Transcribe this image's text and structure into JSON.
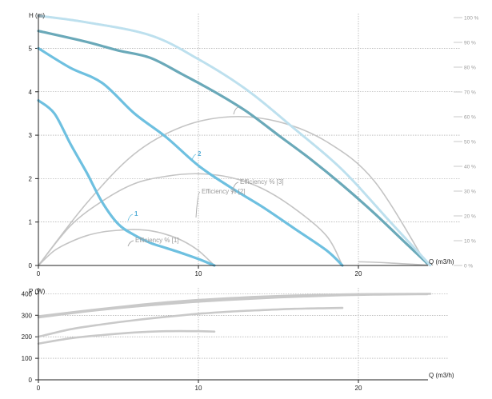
{
  "chart_data": [
    {
      "type": "line",
      "ylabel": "H (m)",
      "xlabel": "Q (m3/h)",
      "xlim": [
        0,
        25
      ],
      "ylim": [
        0,
        5.8
      ],
      "x_ticks": [
        "0",
        "10",
        "20"
      ],
      "x_tick_values": [
        0,
        10,
        20
      ],
      "y_ticks": [
        "0",
        "1",
        "2",
        "3",
        "4",
        "5"
      ],
      "y_tick_values": [
        0,
        1,
        2,
        3,
        4,
        5
      ],
      "grid": true,
      "efficiency_axis": {
        "ticks": [
          "0 %",
          "10 %",
          "20 %",
          "30 %",
          "40 %",
          "50 %",
          "60 %",
          "70 %",
          "80 %",
          "90 %",
          "100 %"
        ],
        "tick_values": [
          0,
          10,
          20,
          30,
          40,
          50,
          60,
          70,
          80,
          90,
          100
        ],
        "range": [
          0,
          100
        ]
      },
      "head_curves": [
        {
          "name": "1",
          "x": [
            0,
            1,
            2,
            3,
            4,
            5,
            6,
            7,
            8,
            9,
            10,
            11
          ],
          "y": [
            3.8,
            3.5,
            2.8,
            2.15,
            1.45,
            0.95,
            0.7,
            0.52,
            0.4,
            0.28,
            0.15,
            0.0
          ]
        },
        {
          "name": "2",
          "x": [
            0,
            2,
            4,
            6,
            8,
            10,
            12,
            14,
            16,
            18,
            19
          ],
          "y": [
            5.0,
            4.55,
            4.2,
            3.5,
            2.95,
            2.3,
            1.8,
            1.35,
            0.85,
            0.35,
            0.0
          ]
        },
        {
          "name": "",
          "x": [
            0,
            3,
            5,
            7,
            9,
            11,
            13,
            15,
            17,
            19,
            21,
            23,
            24.3
          ],
          "y": [
            5.4,
            5.15,
            4.95,
            4.78,
            4.4,
            4.0,
            3.55,
            3.0,
            2.45,
            1.85,
            1.2,
            0.5,
            0.05
          ]
        },
        {
          "name": "",
          "x": [
            0,
            3,
            7,
            10,
            13,
            16,
            19,
            22,
            24.5
          ],
          "y": [
            5.75,
            5.6,
            5.3,
            4.75,
            4.05,
            3.15,
            2.2,
            1.0,
            0.0
          ]
        }
      ],
      "efficiency_curves": [
        {
          "name": "Efficiency % [1]",
          "x": [
            0,
            1,
            2,
            3,
            4,
            5,
            6,
            7,
            8,
            9,
            10,
            11
          ],
          "y_percent": [
            0,
            6,
            9.5,
            12,
            13.5,
            14.2,
            14.5,
            14,
            12.5,
            10,
            6,
            0
          ]
        },
        {
          "name": "Efficiency % [2]",
          "x": [
            0,
            2,
            4,
            6,
            8,
            10,
            12,
            14,
            16,
            18,
            19
          ],
          "y_percent": [
            0,
            16,
            26,
            33,
            36,
            37,
            35.5,
            31,
            23,
            12,
            0
          ]
        },
        {
          "name": "Efficiency % [3]",
          "x": [
            0,
            3,
            6,
            9,
            12,
            15,
            18,
            21,
            24.3
          ],
          "y_percent": [
            0,
            25,
            45,
            56,
            60,
            58,
            50,
            34,
            0
          ]
        },
        {
          "name": "",
          "x": [
            20,
            21,
            22,
            23,
            24,
            24.5
          ],
          "y_percent": [
            1.5,
            1.3,
            1.0,
            0.6,
            0.3,
            0.0
          ]
        }
      ]
    },
    {
      "type": "line",
      "ylabel": "P (W)",
      "xlabel": "Q (m3/h)",
      "xlim": [
        0,
        25
      ],
      "ylim": [
        0,
        420
      ],
      "x_ticks": [
        "0",
        "10",
        "20"
      ],
      "x_tick_values": [
        0,
        10,
        20
      ],
      "y_ticks": [
        "0",
        "100",
        "200",
        "300",
        "400"
      ],
      "y_tick_values": [
        0,
        100,
        200,
        300,
        400
      ],
      "grid": true,
      "series": [
        {
          "name": "",
          "x": [
            0,
            2,
            4,
            6,
            8,
            10,
            11
          ],
          "y": [
            168,
            193,
            208,
            220,
            226,
            226,
            224
          ]
        },
        {
          "name": "",
          "x": [
            0,
            2,
            4,
            6,
            8,
            10,
            12,
            14,
            16,
            18,
            19
          ],
          "y": [
            200,
            235,
            258,
            277,
            293,
            307,
            317,
            324,
            330,
            333,
            334
          ]
        },
        {
          "name": "",
          "x": [
            0,
            3,
            6,
            9,
            12,
            15,
            18,
            21,
            24.3
          ],
          "y": [
            290,
            318,
            340,
            358,
            372,
            383,
            391,
            396,
            398
          ]
        },
        {
          "name": "",
          "x": [
            0,
            4,
            8,
            12,
            16,
            20,
            24.5
          ],
          "y": [
            295,
            330,
            360,
            380,
            392,
            398,
            400
          ]
        }
      ]
    }
  ]
}
